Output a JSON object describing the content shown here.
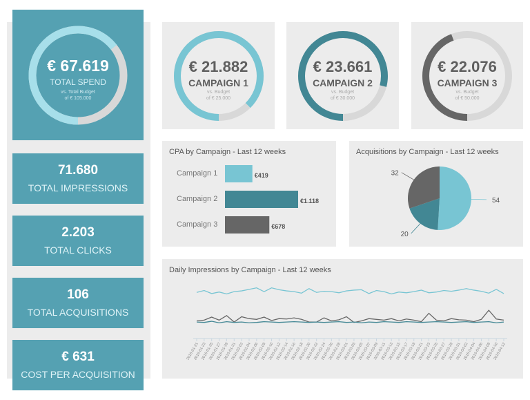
{
  "colors": {
    "teal_box": "#55a1b2",
    "light_cyan": "#a7dfea",
    "cyan": "#78c5d3",
    "dark_teal": "#428794",
    "dark_gray": "#666666",
    "track": "#d8d8d8",
    "panel": "#ececec"
  },
  "total_spend": {
    "value": "€ 67.619",
    "label": "TOTAL SPEND",
    "sub1": "vs. Total Budget",
    "sub2": "of € 105.000",
    "fraction": 0.644
  },
  "kpis": [
    {
      "value": "71.680",
      "label": "TOTAL IMPRESSIONS"
    },
    {
      "value": "2.203",
      "label": "TOTAL CLICKS"
    },
    {
      "value": "106",
      "label": "TOTAL ACQUISITIONS"
    },
    {
      "value": "€ 631",
      "label": "COST PER ACQUISITION"
    }
  ],
  "campaign_gauges": [
    {
      "value": "€ 21.882",
      "label": "CAMPAIGN 1",
      "sub1": "vs. Budget",
      "sub2": "of € 25.000",
      "fraction": 0.875,
      "color": "#78c5d3"
    },
    {
      "value": "€ 23.661",
      "label": "CAMPAIGN 2",
      "sub1": "vs. Budget",
      "sub2": "of € 30.000",
      "fraction": 0.789,
      "color": "#428794"
    },
    {
      "value": "€ 22.076",
      "label": "CAMPAIGN 3",
      "sub1": "vs. Budget",
      "sub2": "of € 50.000",
      "fraction": 0.442,
      "color": "#666666"
    }
  ],
  "chart_data": [
    {
      "type": "bar",
      "title": "CPA by Campaign - Last 12 weeks",
      "orientation": "horizontal",
      "categories": [
        "Campaign 1",
        "Campaign 2",
        "Campaign 3"
      ],
      "values": [
        419,
        1118,
        678
      ],
      "data_labels": [
        "€419",
        "€1.118",
        "€678"
      ],
      "colors": [
        "#78c5d3",
        "#428794",
        "#666666"
      ]
    },
    {
      "type": "pie",
      "title": "Acquisitions by Campaign - Last 12 weeks",
      "categories": [
        "Campaign 1",
        "Campaign 2",
        "Campaign 3"
      ],
      "values": [
        54,
        20,
        32
      ],
      "colors": [
        "#78c5d3",
        "#428794",
        "#666666"
      ]
    },
    {
      "type": "line",
      "title": "Daily Impressions by Campaign - Last 12 weeks",
      "grid": false,
      "x": [
        "2016-01-21",
        "2016-01-23",
        "2016-01-25",
        "2016-01-27",
        "2016-01-29",
        "2016-01-31",
        "2016-02-02",
        "2016-02-04",
        "2016-02-06",
        "2016-02-08",
        "2016-02-10",
        "2016-02-12",
        "2016-02-14",
        "2016-02-16",
        "2016-02-18",
        "2016-02-20",
        "2016-02-22",
        "2016-02-24",
        "2016-02-26",
        "2016-02-28",
        "2016-03-01",
        "2016-03-03",
        "2016-03-05",
        "2016-03-07",
        "2016-03-09",
        "2016-03-11",
        "2016-03-13",
        "2016-03-15",
        "2016-03-17",
        "2016-03-19",
        "2016-03-21",
        "2016-03-23",
        "2016-03-25",
        "2016-03-27",
        "2016-03-29",
        "2016-03-31",
        "2016-04-02",
        "2016-04-04",
        "2016-04-06",
        "2016-04-08",
        "2016-04-10",
        "2016-04-12"
      ],
      "series": [
        {
          "color": "#78c5d3",
          "values": [
            1250,
            1300,
            1220,
            1260,
            1210,
            1270,
            1290,
            1330,
            1370,
            1270,
            1370,
            1320,
            1290,
            1270,
            1230,
            1350,
            1250,
            1280,
            1270,
            1240,
            1290,
            1310,
            1320,
            1220,
            1300,
            1270,
            1210,
            1260,
            1240,
            1270,
            1310,
            1240,
            1260,
            1300,
            1280,
            1310,
            1350,
            1310,
            1280,
            1230,
            1330,
            1220
          ]
        },
        {
          "color": "#666666",
          "values": [
            500,
            520,
            600,
            520,
            640,
            470,
            610,
            560,
            540,
            600,
            510,
            560,
            550,
            580,
            540,
            470,
            470,
            580,
            500,
            530,
            610,
            460,
            500,
            560,
            540,
            520,
            560,
            500,
            550,
            520,
            480,
            700,
            520,
            500,
            560,
            530,
            520,
            480,
            540,
            780,
            550,
            520
          ]
        },
        {
          "color": "#428794",
          "values": [
            470,
            460,
            490,
            450,
            480,
            460,
            470,
            450,
            460,
            480,
            470,
            460,
            470,
            480,
            470,
            460,
            470,
            460,
            470,
            480,
            460,
            470,
            450,
            470,
            460,
            480,
            470,
            460,
            480,
            470,
            460,
            470,
            480,
            470,
            460,
            470,
            480,
            460,
            470,
            480,
            450,
            470
          ]
        }
      ]
    }
  ]
}
